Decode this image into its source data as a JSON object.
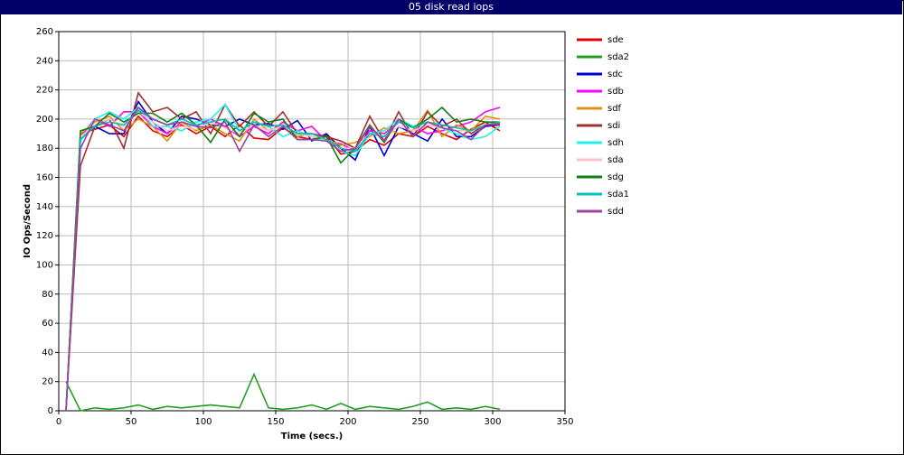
{
  "chart_data": {
    "type": "line",
    "title": "05 disk read iops",
    "x_label": "Time (secs.)",
    "y_label": "IO Ops/Second",
    "x": [
      5,
      15,
      25,
      35,
      45,
      55,
      65,
      75,
      85,
      95,
      105,
      115,
      125,
      135,
      145,
      155,
      165,
      175,
      185,
      195,
      205,
      215,
      225,
      235,
      245,
      255,
      265,
      275,
      285,
      295,
      305
    ],
    "xlim": [
      0,
      350
    ],
    "xticks": [
      0,
      50,
      100,
      150,
      200,
      250,
      300,
      350
    ],
    "ylim": [
      0,
      260
    ],
    "yticks": [
      0,
      20,
      40,
      60,
      80,
      100,
      120,
      140,
      160,
      180,
      200,
      220,
      240,
      260
    ],
    "grid": true,
    "series": [
      {
        "name": "sde",
        "color": "#e00000",
        "values": [
          0,
          190,
          193,
          196,
          188,
          202,
          192,
          188,
          196,
          190,
          195,
          188,
          196,
          187,
          186,
          194,
          188,
          186,
          189,
          176,
          178,
          186,
          182,
          190,
          188,
          195,
          190,
          186,
          193,
          198,
          192
        ]
      },
      {
        "name": "sda2",
        "color": "#20a020",
        "values": [
          20,
          0,
          2,
          1,
          2,
          4,
          1,
          3,
          2,
          3,
          4,
          3,
          2,
          25,
          2,
          1,
          2,
          4,
          1,
          5,
          1,
          3,
          2,
          1,
          3,
          6,
          1,
          2,
          1,
          3,
          1
        ]
      },
      {
        "name": "sdc",
        "color": "#0000cc",
        "values": [
          0,
          186,
          195,
          190,
          190,
          212,
          198,
          190,
          202,
          200,
          196,
          195,
          200,
          196,
          197,
          193,
          199,
          185,
          190,
          180,
          172,
          195,
          175,
          195,
          190,
          185,
          200,
          188,
          188,
          195,
          196
        ]
      },
      {
        "name": "sdb",
        "color": "#ff00ff",
        "values": [
          0,
          188,
          200,
          195,
          205,
          205,
          195,
          190,
          198,
          195,
          200,
          195,
          188,
          195,
          190,
          198,
          192,
          195,
          185,
          183,
          178,
          192,
          190,
          198,
          195,
          190,
          192,
          195,
          198,
          205,
          208
        ]
      },
      {
        "name": "sdf",
        "color": "#e09010",
        "values": [
          0,
          190,
          198,
          202,
          192,
          200,
          195,
          185,
          198,
          192,
          196,
          190,
          185,
          200,
          192,
          196,
          188,
          190,
          186,
          182,
          184,
          188,
          194,
          190,
          192,
          206,
          188,
          196,
          192,
          202,
          200
        ]
      },
      {
        "name": "sdi",
        "color": "#a03030",
        "values": [
          0,
          168,
          195,
          200,
          180,
          218,
          205,
          208,
          200,
          205,
          190,
          210,
          195,
          205,
          195,
          205,
          190,
          190,
          188,
          185,
          180,
          202,
          185,
          205,
          188,
          205,
          195,
          200,
          190,
          196,
          196
        ]
      },
      {
        "name": "sdh",
        "color": "#20f0f0",
        "values": [
          0,
          185,
          200,
          205,
          200,
          208,
          195,
          195,
          192,
          198,
          200,
          210,
          192,
          198,
          195,
          188,
          192,
          188,
          185,
          178,
          175,
          190,
          192,
          200,
          195,
          198,
          194,
          190,
          186,
          188,
          195
        ]
      },
      {
        "name": "sda",
        "color": "#ffc0c8",
        "values": [
          0,
          188,
          196,
          200,
          195,
          205,
          198,
          192,
          195,
          193,
          198,
          194,
          190,
          196,
          192,
          195,
          190,
          188,
          186,
          180,
          180,
          190,
          188,
          195,
          192,
          196,
          194,
          192,
          192,
          196,
          198
        ]
      },
      {
        "name": "sdg",
        "color": "#108010",
        "values": [
          0,
          192,
          195,
          204,
          198,
          204,
          204,
          198,
          204,
          196,
          184,
          200,
          188,
          204,
          198,
          200,
          186,
          186,
          188,
          170,
          180,
          196,
          184,
          200,
          194,
          200,
          208,
          198,
          200,
          198,
          198
        ]
      },
      {
        "name": "sda1",
        "color": "#00c0c0",
        "values": [
          0,
          186,
          195,
          198,
          196,
          206,
          200,
          196,
          200,
          196,
          198,
          200,
          192,
          198,
          195,
          196,
          190,
          190,
          186,
          180,
          178,
          190,
          188,
          198,
          194,
          198,
          196,
          194,
          192,
          196,
          198
        ]
      },
      {
        "name": "sdd",
        "color": "#a040a0",
        "values": [
          0,
          180,
          200,
          196,
          192,
          208,
          200,
          196,
          198,
          195,
          194,
          198,
          178,
          196,
          188,
          195,
          186,
          186,
          185,
          178,
          180,
          195,
          185,
          200,
          188,
          198,
          194,
          192,
          186,
          196,
          197
        ]
      }
    ]
  }
}
